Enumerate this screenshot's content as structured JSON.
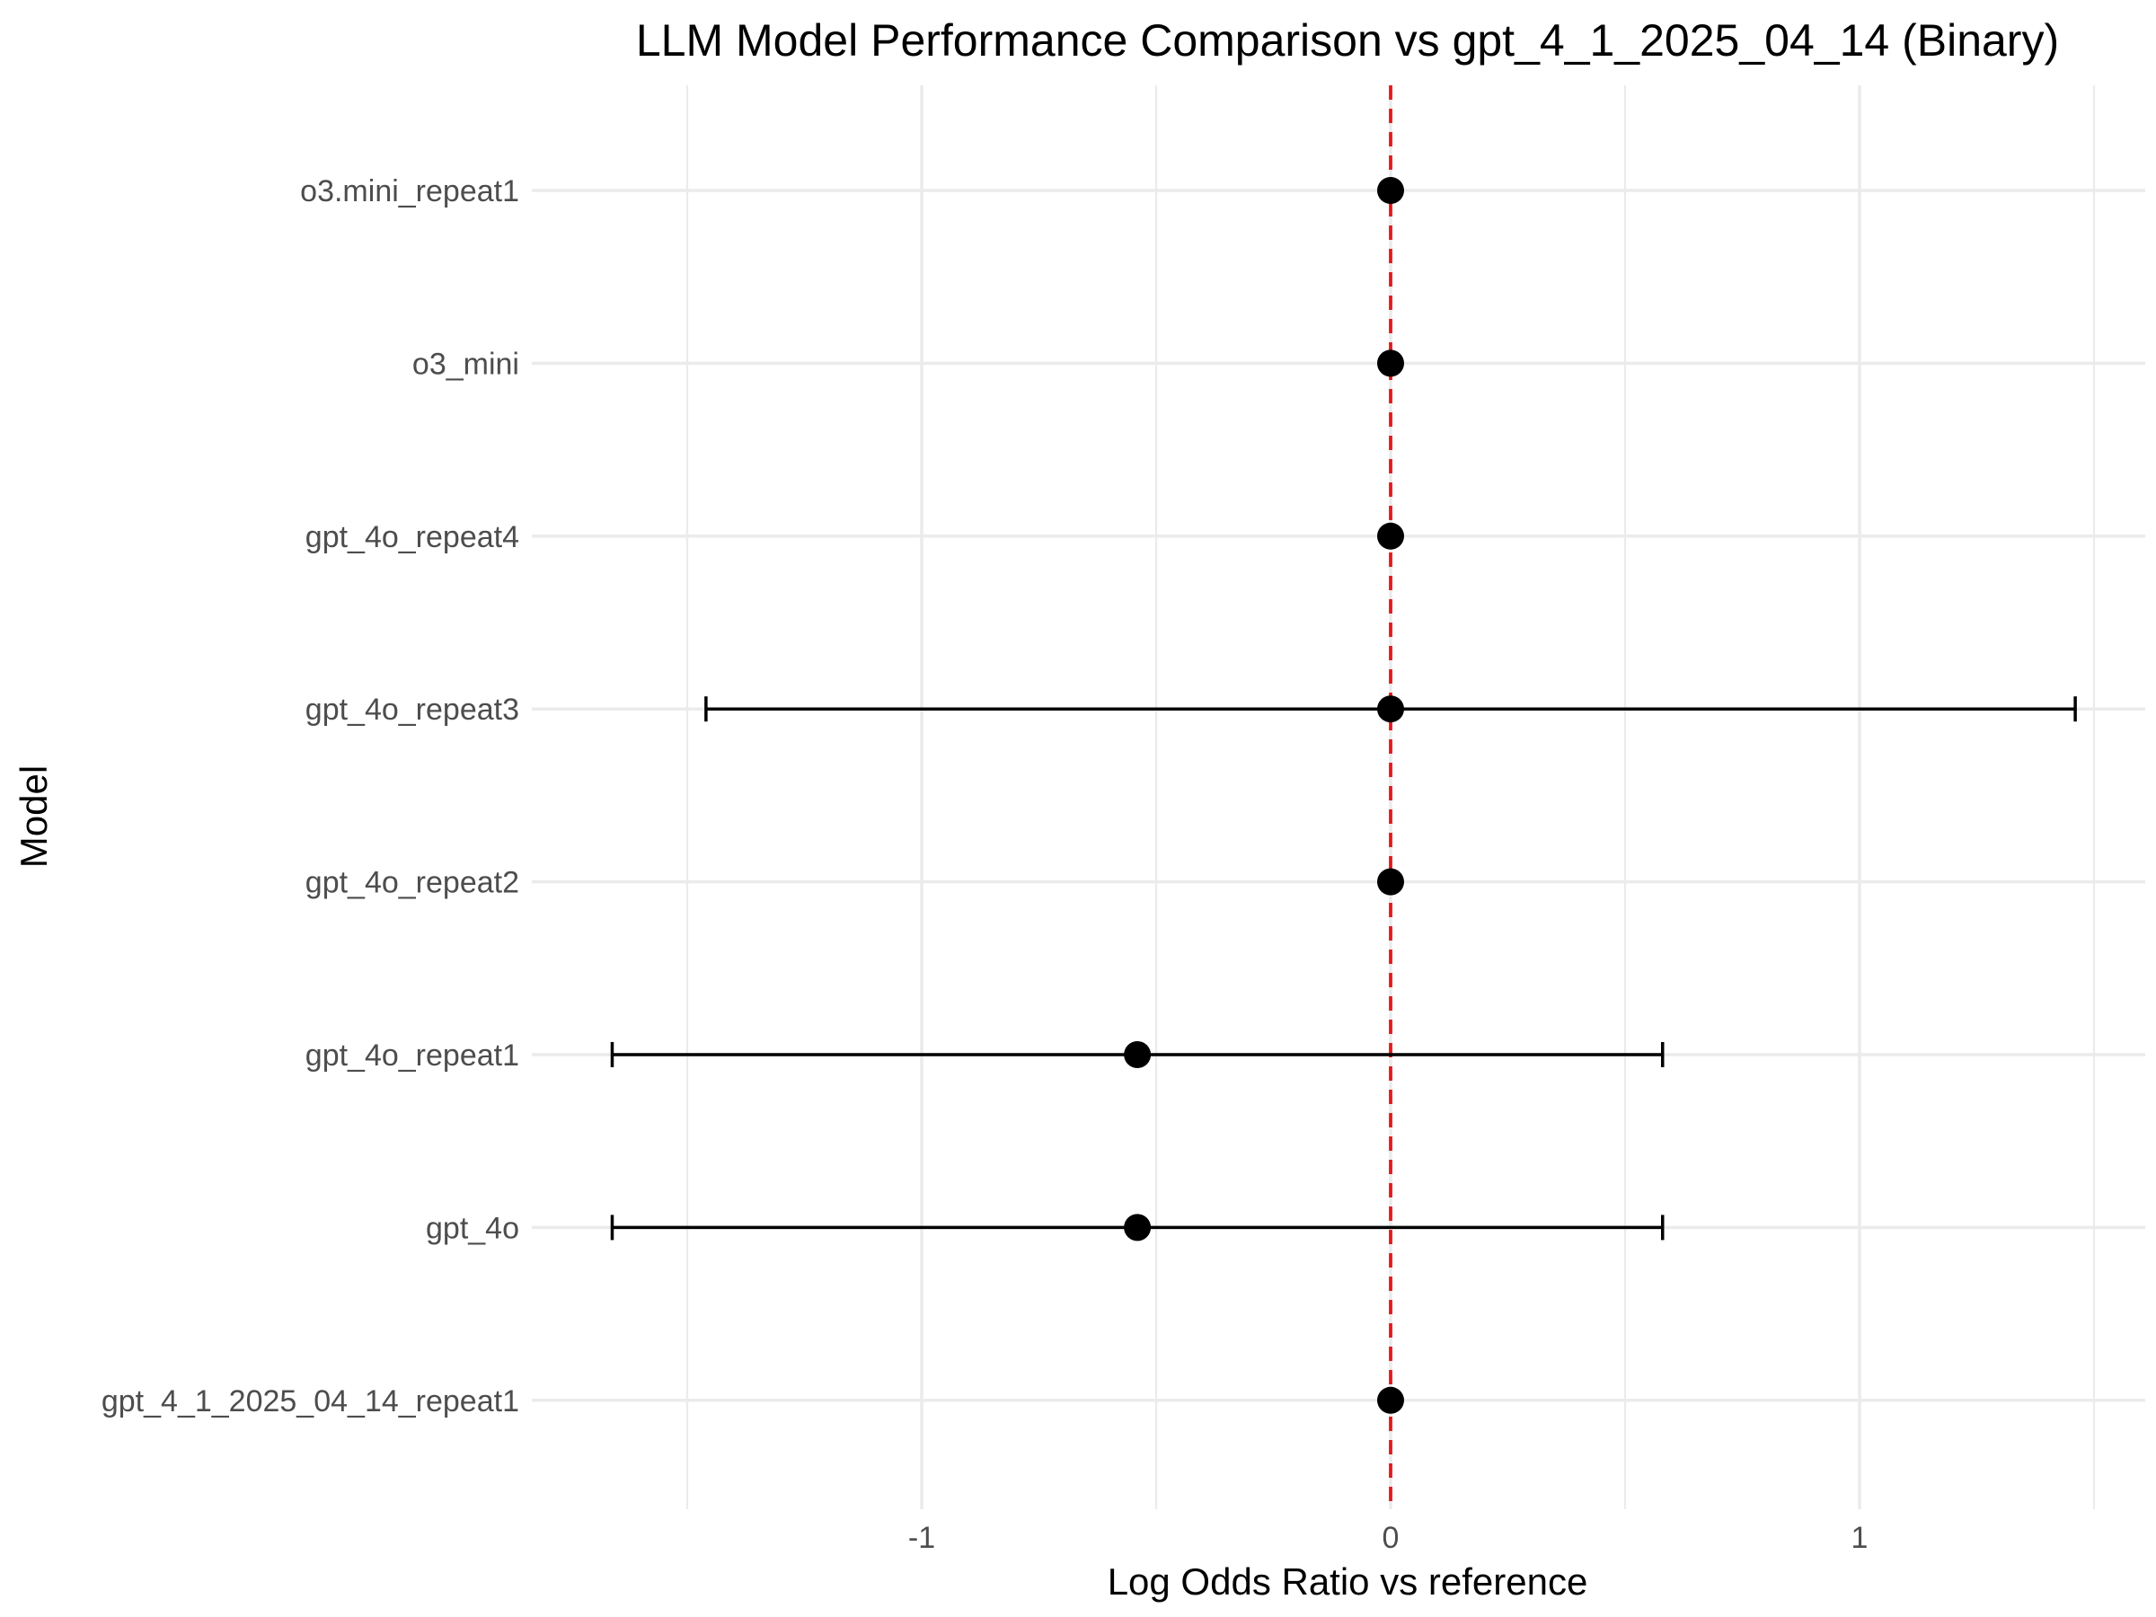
{
  "chart_data": {
    "type": "scatter",
    "subtype": "forest-plot",
    "title": "LLM Model Performance Comparison vs gpt_4_1_2025_04_14 (Binary)",
    "xlabel": "Log Odds Ratio vs reference",
    "ylabel": "Model",
    "xlim": [
      -1.85,
      1.62
    ],
    "x_ticks": [
      -1,
      0,
      1
    ],
    "x_tick_labels": [
      "-1",
      "0",
      "1"
    ],
    "x_minor_gridlines": [
      -1.5,
      -0.5,
      0.5,
      1.5
    ],
    "grid": true,
    "reference_line": {
      "x": 0,
      "color": "#e31a1c",
      "style": "dashed"
    },
    "point_color": "#000000",
    "categories": [
      "o3.mini_repeat1",
      "o3_mini",
      "gpt_4o_repeat4",
      "gpt_4o_repeat3",
      "gpt_4o_repeat2",
      "gpt_4o_repeat1",
      "gpt_4o",
      "gpt_4_1_2025_04_14_repeat1"
    ],
    "estimates": [
      0,
      0,
      0,
      0,
      0,
      -0.54,
      -0.54,
      0
    ],
    "ci_low": [
      null,
      null,
      null,
      -1.46,
      null,
      -1.66,
      -1.66,
      null
    ],
    "ci_high": [
      null,
      null,
      null,
      1.46,
      null,
      0.58,
      0.58,
      null
    ]
  }
}
